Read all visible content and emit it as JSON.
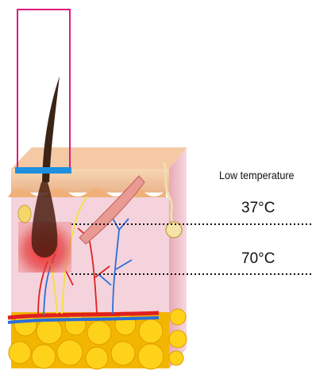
{
  "labels": {
    "low_temperature": "Low temperature",
    "temp_37": "37°C",
    "temp_70": "70°C"
  },
  "colors": {
    "device_outline": "#e0197b",
    "device_tip": "#1e90e0",
    "epidermis": "#f6c9a6",
    "dermis": "#f3cfd8",
    "fat": "#f5c400",
    "hair": "#3b2415",
    "heat_zone": "#d92b2b",
    "artery": "#e02020",
    "vein": "#2a6fd8"
  },
  "icons": [
    "hair-follicle",
    "sweat-gland",
    "muscle",
    "blood-vessels",
    "fat-cells"
  ]
}
